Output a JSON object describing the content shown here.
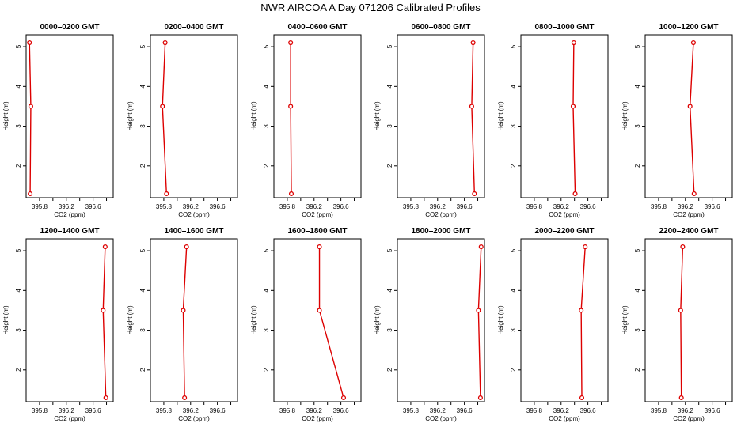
{
  "title": "NWR AIRCOA A  Day 071206  Calibrated Profiles",
  "chart_data": {
    "type": "line",
    "xlabel": "CO2 (ppm)",
    "ylabel": "Height (m)",
    "xlim": [
      395.6,
      396.9
    ],
    "xticks": [
      "395.8",
      "396.2",
      "396.6"
    ],
    "ylim": [
      1.2,
      5.3
    ],
    "yticks": [
      "2",
      "3",
      "4",
      "5"
    ],
    "grid": false,
    "line_color": "#dd0000",
    "panels": [
      {
        "title": "0000–0200 GMT",
        "points": [
          {
            "x": 395.65,
            "y": 5.1
          },
          {
            "x": 395.67,
            "y": 3.5
          },
          {
            "x": 395.66,
            "y": 1.3
          }
        ]
      },
      {
        "title": "0200–0400 GMT",
        "points": [
          {
            "x": 395.82,
            "y": 5.1
          },
          {
            "x": 395.78,
            "y": 3.5
          },
          {
            "x": 395.84,
            "y": 1.3
          }
        ]
      },
      {
        "title": "0400–0600 GMT",
        "points": [
          {
            "x": 395.85,
            "y": 5.1
          },
          {
            "x": 395.85,
            "y": 3.5
          },
          {
            "x": 395.86,
            "y": 1.3
          }
        ]
      },
      {
        "title": "0600–0800 GMT",
        "points": [
          {
            "x": 396.73,
            "y": 5.1
          },
          {
            "x": 396.71,
            "y": 3.5
          },
          {
            "x": 396.75,
            "y": 1.3
          }
        ]
      },
      {
        "title": "0800–1000 GMT",
        "points": [
          {
            "x": 396.39,
            "y": 5.1
          },
          {
            "x": 396.38,
            "y": 3.5
          },
          {
            "x": 396.41,
            "y": 1.3
          }
        ]
      },
      {
        "title": "1000–1200 GMT",
        "points": [
          {
            "x": 396.32,
            "y": 5.1
          },
          {
            "x": 396.27,
            "y": 3.5
          },
          {
            "x": 396.33,
            "y": 1.3
          }
        ]
      },
      {
        "title": "1200–1400 GMT",
        "points": [
          {
            "x": 396.78,
            "y": 5.1
          },
          {
            "x": 396.75,
            "y": 3.5
          },
          {
            "x": 396.79,
            "y": 1.3
          }
        ]
      },
      {
        "title": "1400–1600 GMT",
        "points": [
          {
            "x": 396.14,
            "y": 5.1
          },
          {
            "x": 396.09,
            "y": 3.5
          },
          {
            "x": 396.11,
            "y": 1.3
          }
        ]
      },
      {
        "title": "1600–1800 GMT",
        "points": [
          {
            "x": 396.28,
            "y": 5.1
          },
          {
            "x": 396.28,
            "y": 3.5
          },
          {
            "x": 396.64,
            "y": 1.3
          }
        ]
      },
      {
        "title": "1800–2000 GMT",
        "points": [
          {
            "x": 396.85,
            "y": 5.1
          },
          {
            "x": 396.81,
            "y": 3.5
          },
          {
            "x": 396.84,
            "y": 1.3
          }
        ]
      },
      {
        "title": "2000–2200 GMT",
        "points": [
          {
            "x": 396.56,
            "y": 5.1
          },
          {
            "x": 396.5,
            "y": 3.5
          },
          {
            "x": 396.51,
            "y": 1.3
          }
        ]
      },
      {
        "title": "2200–2400 GMT",
        "points": [
          {
            "x": 396.16,
            "y": 5.1
          },
          {
            "x": 396.13,
            "y": 3.5
          },
          {
            "x": 396.14,
            "y": 1.3
          }
        ]
      }
    ]
  }
}
